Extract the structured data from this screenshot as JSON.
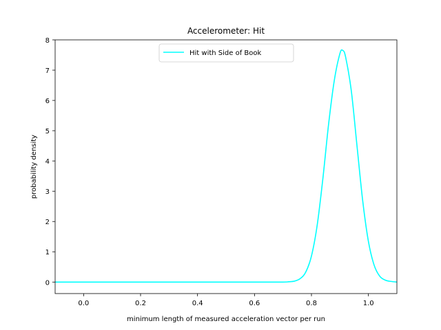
{
  "chart_data": {
    "type": "line",
    "title": "Accelerometer: Hit",
    "xlabel": "minimum length of measured acceleration vector per run",
    "ylabel": "probability density",
    "xlim": [
      -0.1,
      1.1
    ],
    "ylim": [
      -0.38,
      8.0
    ],
    "xticks": [
      0.0,
      0.2,
      0.4,
      0.6,
      0.8,
      1.0
    ],
    "xtick_labels": [
      "0.0",
      "0.2",
      "0.4",
      "0.6",
      "0.8",
      "1.0"
    ],
    "yticks": [
      0,
      1,
      2,
      3,
      4,
      5,
      6,
      7,
      8
    ],
    "ytick_labels": [
      "0",
      "1",
      "2",
      "3",
      "4",
      "5",
      "6",
      "7",
      "8"
    ],
    "grid": false,
    "legend_position": "top-center",
    "series": [
      {
        "name": "Hit with Side of Book",
        "color": "#00ffff",
        "x": [
          -0.1,
          0.0,
          0.1,
          0.2,
          0.3,
          0.4,
          0.5,
          0.6,
          0.7,
          0.72,
          0.74,
          0.76,
          0.78,
          0.8,
          0.82,
          0.84,
          0.86,
          0.88,
          0.9,
          0.91,
          0.92,
          0.94,
          0.96,
          0.98,
          1.0,
          1.02,
          1.04,
          1.06,
          1.08,
          1.1
        ],
        "y": [
          0.0,
          0.0,
          0.0,
          0.0,
          0.0,
          0.0,
          0.0,
          0.0,
          0.0,
          0.01,
          0.03,
          0.11,
          0.33,
          0.86,
          1.87,
          3.41,
          5.2,
          6.65,
          7.55,
          7.65,
          7.43,
          6.31,
          4.49,
          2.68,
          1.34,
          0.56,
          0.19,
          0.06,
          0.02,
          0.0
        ]
      }
    ]
  }
}
